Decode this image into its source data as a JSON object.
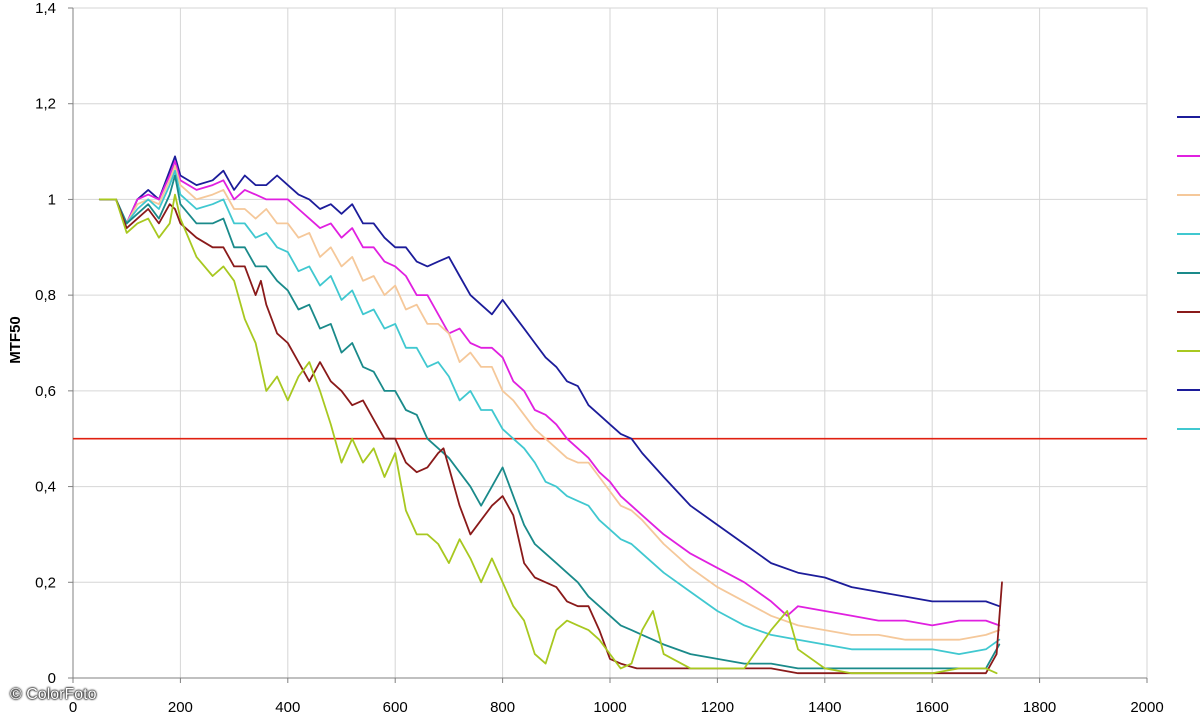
{
  "chart_data": {
    "type": "line",
    "title": "",
    "xlabel": "",
    "ylabel": "MTF50",
    "xlim": [
      0,
      2000
    ],
    "ylim": [
      0,
      1.4
    ],
    "x_ticks": [
      0,
      200,
      400,
      600,
      800,
      1000,
      1200,
      1400,
      1600,
      1800,
      2000
    ],
    "y_ticks": [
      0,
      0.2,
      0.4,
      0.6,
      0.8,
      1,
      1.2,
      1.4
    ],
    "x_tick_labels": [
      "0",
      "200",
      "400",
      "600",
      "800",
      "1000",
      "1200",
      "1400",
      "1600",
      "1800",
      "2000"
    ],
    "y_tick_labels": [
      "0",
      "0,2",
      "0,4",
      "0,6",
      "0,8",
      "1",
      "1,2",
      "1,4"
    ],
    "grid": true,
    "legend": "right",
    "reference_line": {
      "y": 0.5,
      "color": "#e02010"
    },
    "series": [
      {
        "color": "#1c1c9a",
        "x": [
          50,
          80,
          100,
          120,
          140,
          160,
          180,
          190,
          200,
          230,
          260,
          280,
          300,
          320,
          340,
          360,
          380,
          400,
          420,
          440,
          460,
          480,
          500,
          520,
          540,
          560,
          580,
          600,
          620,
          640,
          660,
          680,
          700,
          720,
          740,
          760,
          780,
          800,
          820,
          840,
          860,
          880,
          900,
          920,
          940,
          960,
          980,
          1000,
          1020,
          1040,
          1060,
          1100,
          1150,
          1200,
          1250,
          1300,
          1350,
          1400,
          1450,
          1500,
          1550,
          1600,
          1650,
          1700,
          1725
        ],
        "y": [
          1,
          1,
          0.95,
          1,
          1.02,
          1,
          1.06,
          1.09,
          1.05,
          1.03,
          1.04,
          1.06,
          1.02,
          1.05,
          1.03,
          1.03,
          1.05,
          1.03,
          1.01,
          1,
          0.98,
          0.99,
          0.97,
          0.99,
          0.95,
          0.95,
          0.92,
          0.9,
          0.9,
          0.87,
          0.86,
          0.87,
          0.88,
          0.84,
          0.8,
          0.78,
          0.76,
          0.79,
          0.76,
          0.73,
          0.7,
          0.67,
          0.65,
          0.62,
          0.61,
          0.57,
          0.55,
          0.53,
          0.51,
          0.5,
          0.47,
          0.42,
          0.36,
          0.32,
          0.28,
          0.24,
          0.22,
          0.21,
          0.19,
          0.18,
          0.17,
          0.16,
          0.16,
          0.16,
          0.15
        ]
      },
      {
        "color": "#e020e0",
        "x": [
          50,
          80,
          100,
          120,
          140,
          160,
          180,
          190,
          200,
          230,
          260,
          280,
          300,
          320,
          340,
          360,
          380,
          400,
          420,
          440,
          460,
          480,
          500,
          520,
          540,
          560,
          580,
          600,
          620,
          640,
          660,
          680,
          700,
          720,
          740,
          760,
          780,
          800,
          820,
          840,
          860,
          880,
          900,
          920,
          940,
          960,
          980,
          1000,
          1020,
          1040,
          1060,
          1100,
          1150,
          1200,
          1250,
          1300,
          1330,
          1350,
          1400,
          1450,
          1500,
          1550,
          1600,
          1650,
          1700,
          1725
        ],
        "y": [
          1,
          1,
          0.95,
          1,
          1.01,
          1,
          1.05,
          1.08,
          1.04,
          1.02,
          1.03,
          1.04,
          1,
          1.02,
          1.01,
          1,
          1,
          1,
          0.98,
          0.96,
          0.94,
          0.95,
          0.92,
          0.94,
          0.9,
          0.9,
          0.87,
          0.86,
          0.84,
          0.8,
          0.8,
          0.76,
          0.72,
          0.73,
          0.7,
          0.69,
          0.69,
          0.67,
          0.62,
          0.6,
          0.56,
          0.55,
          0.53,
          0.5,
          0.48,
          0.46,
          0.43,
          0.41,
          0.38,
          0.36,
          0.34,
          0.3,
          0.26,
          0.23,
          0.2,
          0.16,
          0.13,
          0.15,
          0.14,
          0.13,
          0.12,
          0.12,
          0.11,
          0.12,
          0.12,
          0.11
        ]
      },
      {
        "color": "#f5c89a",
        "x": [
          50,
          80,
          100,
          120,
          140,
          160,
          180,
          190,
          200,
          230,
          260,
          280,
          300,
          320,
          340,
          360,
          380,
          400,
          420,
          440,
          460,
          480,
          500,
          520,
          540,
          560,
          580,
          600,
          620,
          640,
          660,
          680,
          700,
          720,
          740,
          760,
          780,
          800,
          820,
          840,
          860,
          880,
          900,
          920,
          940,
          960,
          980,
          1000,
          1020,
          1040,
          1060,
          1100,
          1150,
          1200,
          1250,
          1300,
          1350,
          1400,
          1450,
          1500,
          1550,
          1600,
          1650,
          1700,
          1725
        ],
        "y": [
          1,
          1,
          0.95,
          0.99,
          1,
          0.99,
          1.04,
          1.07,
          1.03,
          1,
          1.01,
          1.02,
          0.98,
          0.98,
          0.96,
          0.98,
          0.95,
          0.95,
          0.92,
          0.93,
          0.88,
          0.9,
          0.86,
          0.88,
          0.83,
          0.84,
          0.8,
          0.82,
          0.77,
          0.78,
          0.74,
          0.74,
          0.72,
          0.66,
          0.68,
          0.65,
          0.65,
          0.6,
          0.58,
          0.55,
          0.52,
          0.5,
          0.48,
          0.46,
          0.45,
          0.45,
          0.42,
          0.39,
          0.36,
          0.35,
          0.33,
          0.28,
          0.23,
          0.19,
          0.16,
          0.13,
          0.11,
          0.1,
          0.09,
          0.09,
          0.08,
          0.08,
          0.08,
          0.09,
          0.1
        ]
      },
      {
        "color": "#40c8d0",
        "x": [
          50,
          80,
          100,
          120,
          140,
          160,
          180,
          190,
          200,
          230,
          260,
          280,
          300,
          320,
          340,
          360,
          380,
          400,
          420,
          440,
          460,
          480,
          500,
          520,
          540,
          560,
          580,
          600,
          620,
          640,
          660,
          680,
          700,
          720,
          740,
          760,
          780,
          800,
          820,
          840,
          860,
          880,
          900,
          920,
          940,
          960,
          980,
          1000,
          1020,
          1040,
          1060,
          1100,
          1150,
          1200,
          1250,
          1300,
          1350,
          1400,
          1450,
          1500,
          1550,
          1600,
          1650,
          1700,
          1725
        ],
        "y": [
          1,
          1,
          0.95,
          0.98,
          1,
          0.98,
          1.03,
          1.06,
          1.01,
          0.98,
          0.99,
          1,
          0.95,
          0.95,
          0.92,
          0.93,
          0.9,
          0.89,
          0.85,
          0.86,
          0.82,
          0.84,
          0.79,
          0.81,
          0.76,
          0.77,
          0.73,
          0.74,
          0.69,
          0.69,
          0.65,
          0.66,
          0.63,
          0.58,
          0.6,
          0.56,
          0.56,
          0.52,
          0.5,
          0.48,
          0.45,
          0.41,
          0.4,
          0.38,
          0.37,
          0.36,
          0.33,
          0.31,
          0.29,
          0.28,
          0.26,
          0.22,
          0.18,
          0.14,
          0.11,
          0.09,
          0.08,
          0.07,
          0.06,
          0.06,
          0.06,
          0.06,
          0.05,
          0.06,
          0.08
        ]
      },
      {
        "color": "#1a8a8a",
        "x": [
          50,
          80,
          100,
          120,
          140,
          160,
          180,
          190,
          200,
          230,
          260,
          280,
          300,
          320,
          340,
          360,
          380,
          400,
          420,
          440,
          460,
          480,
          500,
          520,
          540,
          560,
          580,
          600,
          620,
          640,
          660,
          680,
          700,
          720,
          740,
          760,
          780,
          800,
          820,
          840,
          860,
          880,
          900,
          920,
          940,
          960,
          980,
          1000,
          1020,
          1040,
          1060,
          1080,
          1100,
          1150,
          1200,
          1250,
          1300,
          1350,
          1400,
          1450,
          1500,
          1550,
          1600,
          1650,
          1700,
          1725
        ],
        "y": [
          1,
          1,
          0.95,
          0.97,
          0.99,
          0.96,
          1.01,
          1.05,
          0.99,
          0.95,
          0.95,
          0.96,
          0.9,
          0.9,
          0.86,
          0.86,
          0.83,
          0.81,
          0.77,
          0.78,
          0.73,
          0.74,
          0.68,
          0.7,
          0.65,
          0.64,
          0.6,
          0.6,
          0.56,
          0.55,
          0.5,
          0.48,
          0.46,
          0.43,
          0.4,
          0.36,
          0.4,
          0.44,
          0.38,
          0.32,
          0.28,
          0.26,
          0.24,
          0.22,
          0.2,
          0.17,
          0.15,
          0.13,
          0.11,
          0.1,
          0.09,
          0.08,
          0.07,
          0.05,
          0.04,
          0.03,
          0.03,
          0.02,
          0.02,
          0.02,
          0.02,
          0.02,
          0.02,
          0.02,
          0.02,
          0.07
        ]
      },
      {
        "color": "#8a1a1a",
        "x": [
          50,
          80,
          100,
          120,
          140,
          160,
          180,
          190,
          200,
          230,
          260,
          280,
          300,
          320,
          340,
          350,
          360,
          380,
          400,
          420,
          440,
          460,
          480,
          500,
          520,
          540,
          560,
          580,
          600,
          620,
          640,
          660,
          680,
          690,
          700,
          720,
          740,
          760,
          780,
          800,
          820,
          840,
          860,
          880,
          900,
          920,
          940,
          960,
          980,
          1000,
          1020,
          1050,
          1100,
          1150,
          1200,
          1250,
          1300,
          1350,
          1400,
          1450,
          1500,
          1550,
          1600,
          1650,
          1700,
          1720,
          1730
        ],
        "y": [
          1,
          1,
          0.94,
          0.96,
          0.98,
          0.95,
          0.99,
          0.98,
          0.95,
          0.92,
          0.9,
          0.9,
          0.86,
          0.86,
          0.8,
          0.83,
          0.78,
          0.72,
          0.7,
          0.66,
          0.62,
          0.66,
          0.62,
          0.6,
          0.57,
          0.58,
          0.54,
          0.5,
          0.5,
          0.45,
          0.43,
          0.44,
          0.47,
          0.48,
          0.44,
          0.36,
          0.3,
          0.33,
          0.36,
          0.38,
          0.34,
          0.24,
          0.21,
          0.2,
          0.19,
          0.16,
          0.15,
          0.15,
          0.1,
          0.04,
          0.03,
          0.02,
          0.02,
          0.02,
          0.02,
          0.02,
          0.02,
          0.01,
          0.01,
          0.01,
          0.01,
          0.01,
          0.01,
          0.01,
          0.01,
          0.05,
          0.2
        ]
      },
      {
        "color": "#a8c820",
        "x": [
          50,
          80,
          100,
          120,
          140,
          160,
          180,
          190,
          200,
          230,
          260,
          280,
          300,
          320,
          340,
          360,
          380,
          400,
          420,
          440,
          460,
          480,
          500,
          520,
          540,
          560,
          580,
          600,
          620,
          640,
          660,
          680,
          700,
          720,
          740,
          760,
          780,
          800,
          820,
          840,
          860,
          880,
          900,
          920,
          940,
          960,
          980,
          1000,
          1020,
          1040,
          1060,
          1080,
          1100,
          1150,
          1200,
          1250,
          1300,
          1330,
          1350,
          1400,
          1450,
          1500,
          1550,
          1600,
          1650,
          1700,
          1720
        ],
        "y": [
          1,
          1,
          0.93,
          0.95,
          0.96,
          0.92,
          0.95,
          1.01,
          0.96,
          0.88,
          0.84,
          0.86,
          0.83,
          0.75,
          0.7,
          0.6,
          0.63,
          0.58,
          0.63,
          0.66,
          0.6,
          0.53,
          0.45,
          0.5,
          0.45,
          0.48,
          0.42,
          0.47,
          0.35,
          0.3,
          0.3,
          0.28,
          0.24,
          0.29,
          0.25,
          0.2,
          0.25,
          0.2,
          0.15,
          0.12,
          0.05,
          0.03,
          0.1,
          0.12,
          0.11,
          0.1,
          0.08,
          0.05,
          0.02,
          0.03,
          0.1,
          0.14,
          0.05,
          0.02,
          0.02,
          0.02,
          0.1,
          0.14,
          0.06,
          0.02,
          0.01,
          0.01,
          0.01,
          0.01,
          0.02,
          0.02,
          0.01
        ]
      }
    ],
    "legend_entries": [
      {
        "color": "#1c1c9a"
      },
      {
        "color": "#e020e0"
      },
      {
        "color": "#f5c89a"
      },
      {
        "color": "#40c8d0"
      },
      {
        "color": "#1a8a8a"
      },
      {
        "color": "#8a1a1a"
      },
      {
        "color": "#a8c820"
      },
      {
        "color": "#1c1c9a"
      },
      {
        "color": "#40c8d0"
      }
    ]
  },
  "watermark": "© ColorFoto"
}
